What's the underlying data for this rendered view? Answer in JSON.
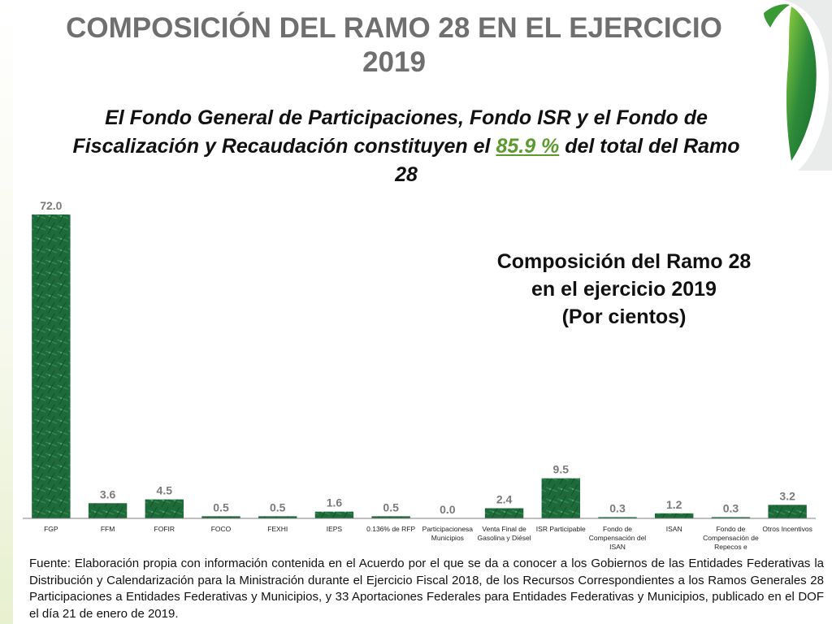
{
  "header": {
    "title_line1": "COMPOSICIÓN DEL RAMO 28 EN EL EJERCICIO",
    "title_line2": "2019"
  },
  "subtitle": {
    "text_line1": "El Fondo General de Participaciones, Fondo ISR y el Fondo de",
    "text_line2_before": "Fiscalización y Recaudación constituyen el ",
    "highlight": "85.9 %",
    "text_line2_after": " del total del Ramo",
    "text_line3": "28"
  },
  "colors": {
    "title": "#6f6f6f",
    "highlight": "#5b9a2c",
    "bar": "#1e6a3a",
    "axis": "#7f7f7f"
  },
  "chart_data": {
    "type": "bar",
    "title": "Composición del Ramo 28 en el ejercicio 2019 (Por cientos)",
    "title_lines": [
      "Composición del Ramo 28",
      "en el ejercicio 2019",
      "(Por cientos)"
    ],
    "categories": [
      [
        "FGP"
      ],
      [
        "FFM"
      ],
      [
        "FOFIR"
      ],
      [
        "FOCO"
      ],
      [
        "FEXHI"
      ],
      [
        "IEPS"
      ],
      [
        "0.136% de RFP"
      ],
      [
        "Participacionesa",
        "Municipios"
      ],
      [
        "Venta Final de",
        "Gasolina y Diésel"
      ],
      [
        "ISR Participable"
      ],
      [
        "Fondo de",
        "Compensación del",
        "ISAN"
      ],
      [
        "ISAN"
      ],
      [
        "Fondo de",
        "Compensación de",
        "Repecos e"
      ],
      [
        "Otros Incentivos"
      ]
    ],
    "values": [
      72.0,
      3.6,
      4.5,
      0.5,
      0.5,
      1.6,
      0.5,
      0.0,
      2.4,
      9.5,
      0.3,
      1.2,
      0.3,
      3.2
    ],
    "labels": [
      "72.0",
      "3.6",
      "4.5",
      "0.5",
      "0.5",
      "1.6",
      "0.5",
      "0.0",
      "2.4",
      "9.5",
      "0.3",
      "1.2",
      "0.3",
      "3.2"
    ],
    "ylim": [
      0,
      72
    ],
    "xlabel": "",
    "ylabel": "",
    "grid": false,
    "legend": "none"
  },
  "source": {
    "text": "Fuente: Elaboración propia con información contenida en el Acuerdo por el que se da a conocer a los Gobiernos de las Entidades Federativas la Distribución y Calendarización para la Ministración durante el Ejercicio Fiscal 2018, de los Recursos Correspondientes a los Ramos Generales 28 Participaciones a Entidades Federativas y Municipios, y 33 Aportaciones Federales para Entidades Federativas y Municipios, publicado en el DOF el día 21 de enero de 2019."
  }
}
